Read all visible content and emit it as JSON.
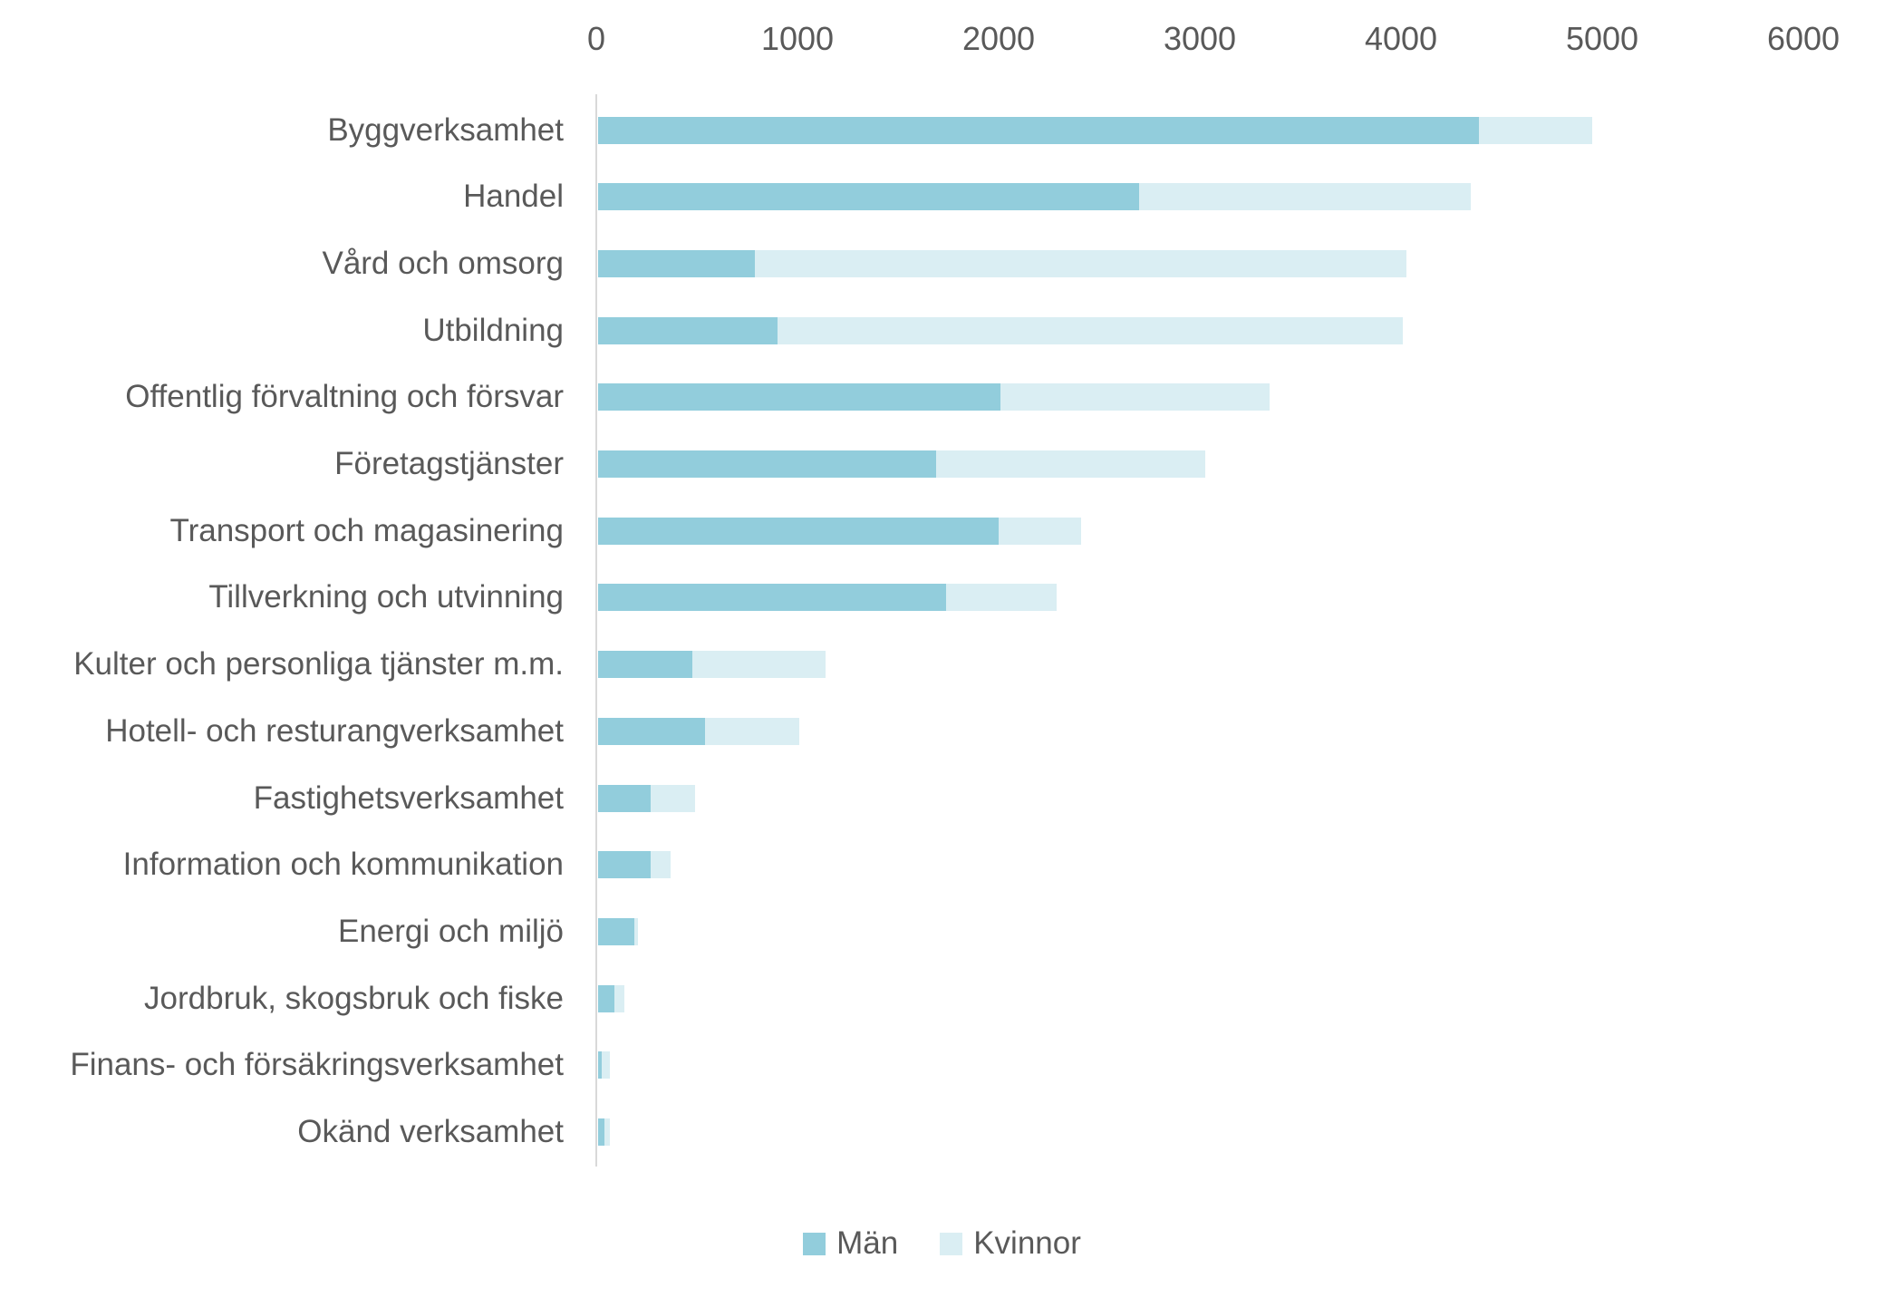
{
  "chart_data": {
    "type": "bar",
    "orientation": "horizontal-stacked",
    "title": "",
    "categories": [
      "Byggverksamhet",
      "Handel",
      "Vård och omsorg",
      "Utbildning",
      "Offentlig förvaltning och försvar",
      "Företagstjänster",
      "Transport och magasinering",
      "Tillverkning och utvinning",
      "Kulter och personliga tjänster m.m.",
      "Hotell- och resturangverksamhet",
      "Fastighetsverksamhet",
      "Information och kommunikation",
      "Energi och miljö",
      "Jordbruk, skogsbruk och fiske",
      "Finans- och försäkringsverksamhet",
      "Okänd verksamhet"
    ],
    "series": [
      {
        "name": "Män",
        "color": "#92CDDC",
        "values": [
          4380,
          2690,
          780,
          890,
          2000,
          1680,
          1990,
          1730,
          470,
          530,
          260,
          260,
          180,
          80,
          20,
          30
        ]
      },
      {
        "name": "Kvinnor",
        "color": "#DAEEF3",
        "values": [
          560,
          1650,
          3240,
          3110,
          1340,
          1340,
          410,
          550,
          660,
          470,
          220,
          100,
          20,
          50,
          40,
          30
        ]
      }
    ],
    "x_axis": {
      "min": 0,
      "max": 6000,
      "tick_interval": 1000,
      "tick_labels": [
        "0",
        "1000",
        "2000",
        "3000",
        "4000",
        "5000",
        "6000"
      ]
    },
    "grid": "off",
    "legend_position": "bottom"
  },
  "colors": {
    "man_series": "#92CDDC",
    "kvinnor_series": "#DAEEF3",
    "text": "#595959",
    "axis_line": "#D9D9D9",
    "background": "#FFFFFF"
  }
}
